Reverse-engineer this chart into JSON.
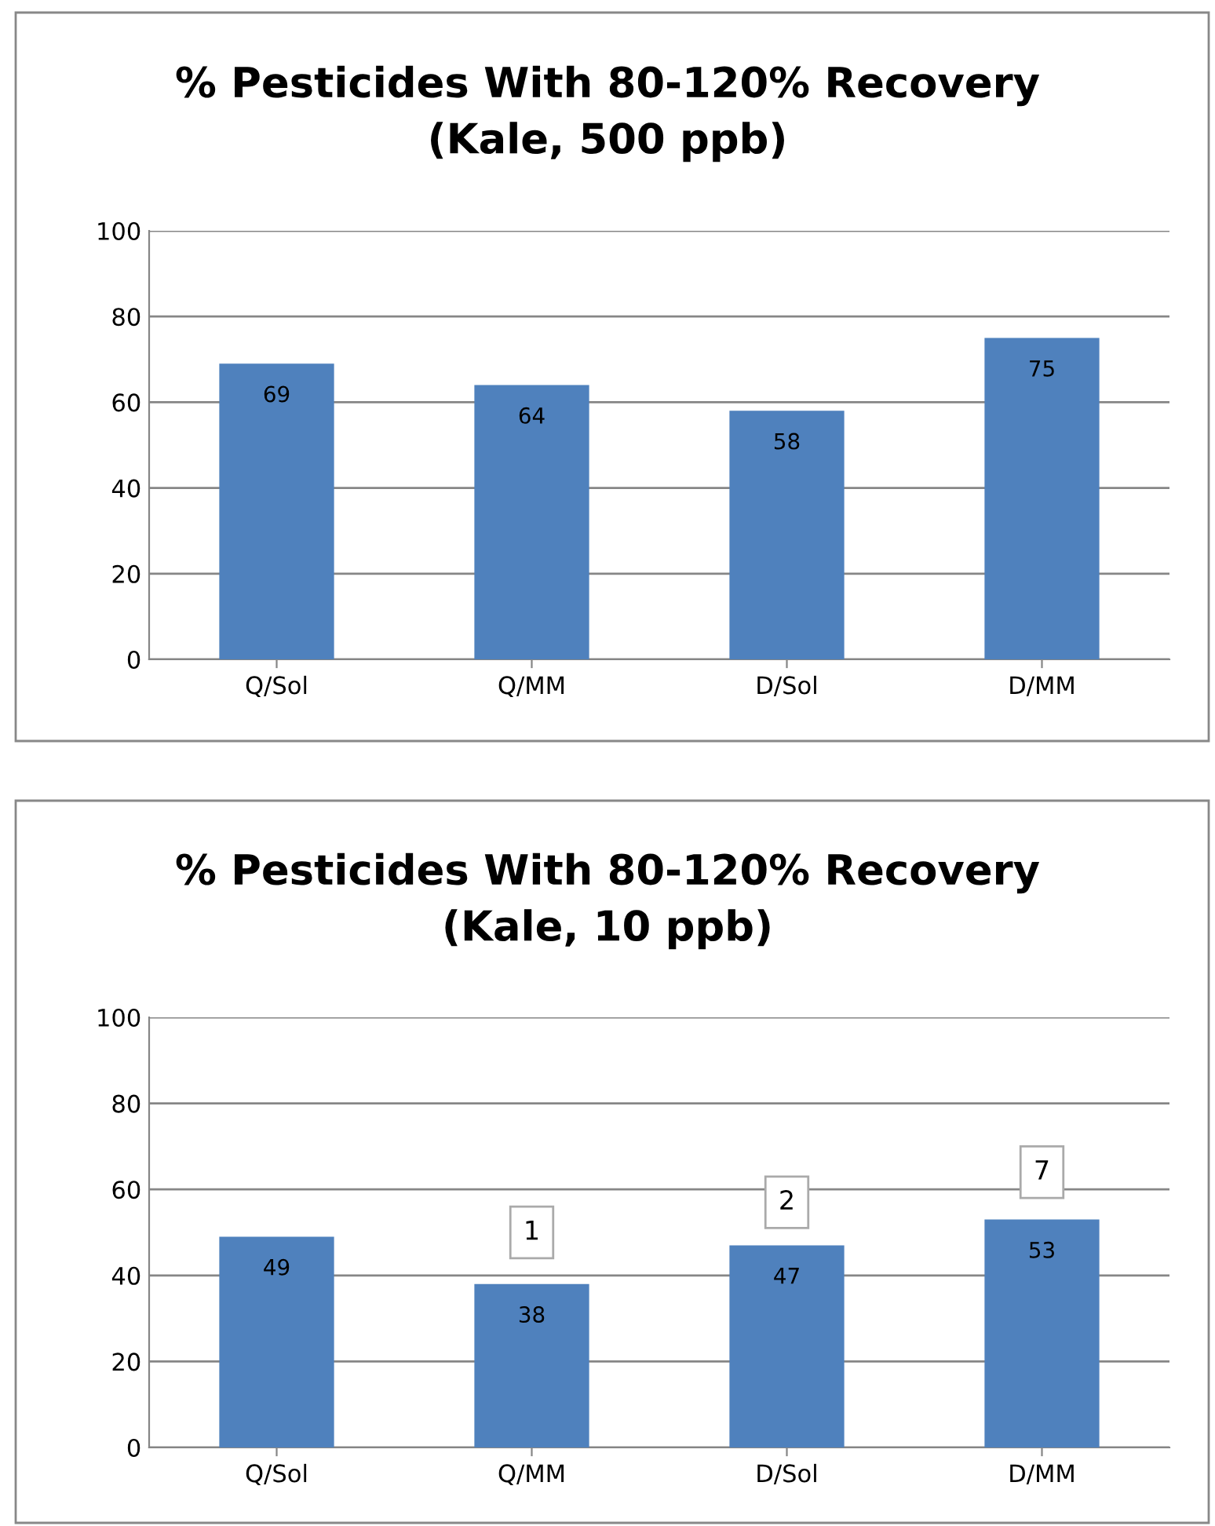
{
  "chart_data": [
    {
      "type": "bar",
      "title": "% Pesticides With 80-120% Recovery\n(Kale, 500 ppb)",
      "categories": [
        "Q/Sol",
        "Q/MM",
        "D/Sol",
        "D/MM"
      ],
      "values": [
        69,
        64,
        58,
        75
      ],
      "color": "#4f81bd",
      "ylim": [
        0,
        100
      ],
      "yticks": [
        0,
        20,
        40,
        60,
        80,
        100
      ],
      "grid": "y",
      "data_labels": true
    },
    {
      "type": "bar",
      "title": "% Pesticides With 80-120% Recovery\n(Kale, 10 ppb)",
      "categories": [
        "Q/Sol",
        "Q/MM",
        "D/Sol",
        "D/MM"
      ],
      "values": [
        49,
        38,
        47,
        53
      ],
      "color": "#4f81bd",
      "ylim": [
        0,
        100
      ],
      "yticks": [
        0,
        20,
        40,
        60,
        80,
        100
      ],
      "grid": "y",
      "data_labels": true,
      "annotations": [
        {
          "text": "1",
          "x": "Q/MM",
          "y": 50
        },
        {
          "text": "2",
          "x": "D/Sol",
          "y": 57
        },
        {
          "text": "7",
          "x": "D/MM",
          "y": 64
        }
      ]
    }
  ]
}
